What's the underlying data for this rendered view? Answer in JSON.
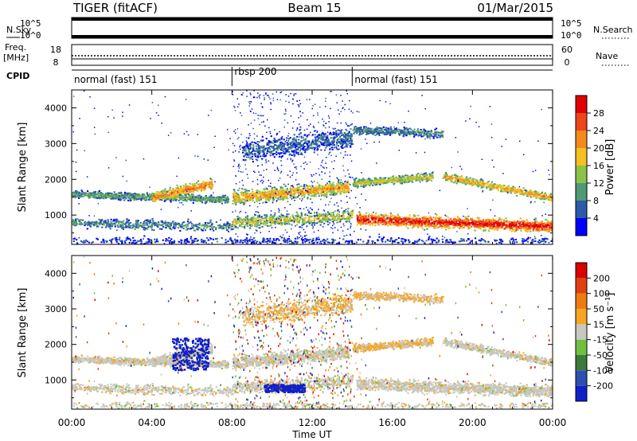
{
  "header": {
    "radar": "TIGER (fitACF)",
    "beam": "Beam 15",
    "date": "01/Mar/2015"
  },
  "strips": {
    "nsky_label": "N.Sky",
    "nsearch_label": "N.Search",
    "freq_label_1": "Freq.",
    "freq_label_2": "[MHz]",
    "nave_label": "Nave",
    "cpid_label": "CPID",
    "nsky_ticks": [
      "10^5",
      "10^0"
    ],
    "nsearch_ticks": [
      "10^5",
      "10^0"
    ],
    "freq_ticks": [
      "18",
      "8"
    ],
    "nave_ticks": [
      "60",
      "0"
    ]
  },
  "cpid_segments": [
    {
      "label": "normal (fast) 151",
      "start_hour": 0,
      "end_hour": 8
    },
    {
      "label": "rbsp 200",
      "start_hour": 8,
      "end_hour": 14
    },
    {
      "label": "normal (fast) 151",
      "start_hour": 14,
      "end_hour": 24
    }
  ],
  "power_colorbar": {
    "label": "Power [dB]",
    "ticks": [
      "28",
      "24",
      "20",
      "16",
      "12",
      "8",
      "4"
    ],
    "colors": [
      "#0000ff",
      "#2a5aa8",
      "#4f9a72",
      "#8cc24a",
      "#f6c020",
      "#f48a1a",
      "#f0441a",
      "#e00000"
    ]
  },
  "velocity_colorbar": {
    "label": "Velocity [m s⁻¹]",
    "ticks": [
      "200",
      "100",
      "50",
      "15",
      "-15",
      "-50",
      "-100",
      "-200"
    ],
    "colors": [
      "#1020c8",
      "#2f4fb0",
      "#3a7a3a",
      "#70c040",
      "#c8c8c0",
      "#f5a623",
      "#f07a10",
      "#e04010",
      "#d80000"
    ]
  },
  "chart_data": {
    "type": "heatmap",
    "xlabel": "Time UT",
    "ylabel": "Slant Range [km]",
    "x_ticks": [
      "00:00",
      "04:00",
      "08:00",
      "12:00",
      "16:00",
      "20:00",
      "00:00"
    ],
    "xlim_hours": [
      0,
      24
    ],
    "y_ticks": [
      1000,
      2000,
      3000,
      4000
    ],
    "ylim_km": [
      180,
      4500
    ],
    "panels": [
      "Power",
      "Velocity"
    ]
  }
}
